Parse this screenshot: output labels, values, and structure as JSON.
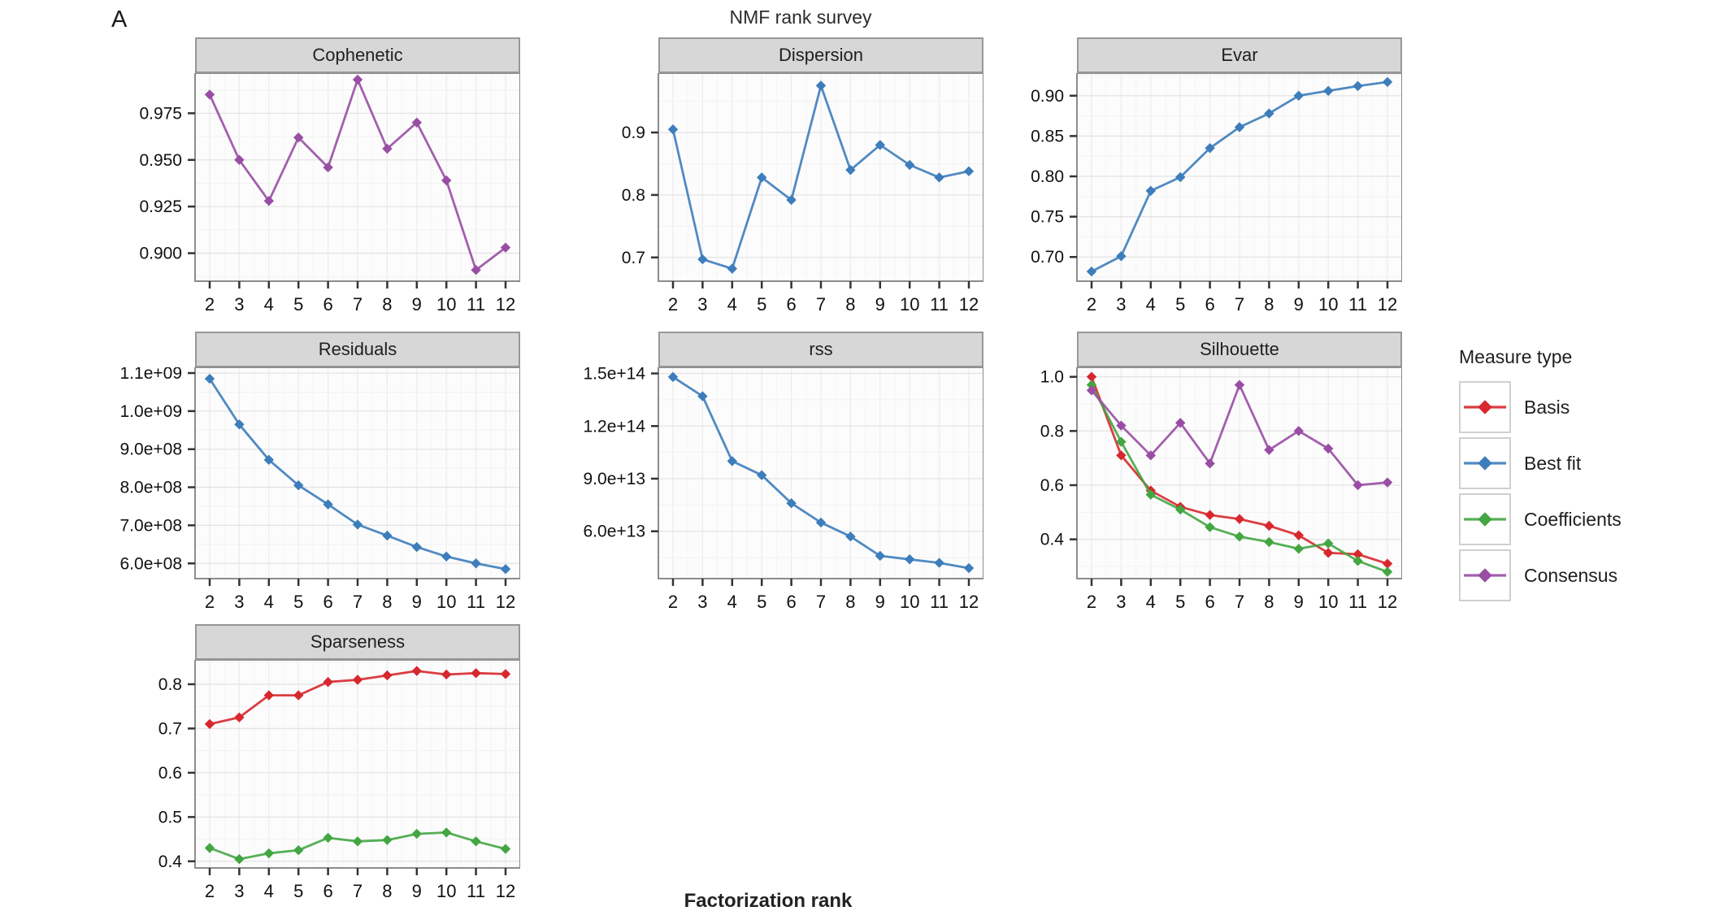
{
  "figure_label": "A",
  "title": "NMF rank survey",
  "xlabel": "Factorization rank",
  "x_tick_labels": [
    "2",
    "3",
    "4",
    "5",
    "6",
    "7",
    "8",
    "9",
    "10",
    "11",
    "12"
  ],
  "legend": {
    "title": "Measure type",
    "items": [
      {
        "label": "Basis",
        "color": "#d7282e"
      },
      {
        "label": "Best fit",
        "color": "#3d7dbb"
      },
      {
        "label": "Coefficients",
        "color": "#43a643"
      },
      {
        "label": "Consensus",
        "color": "#984fa3"
      }
    ]
  },
  "chart_data": [
    {
      "type": "line",
      "title": "Cophenetic",
      "x": [
        2,
        3,
        4,
        5,
        6,
        7,
        8,
        9,
        10,
        11,
        12
      ],
      "series": [
        {
          "name": "Consensus",
          "color": "#984fa3",
          "values": [
            0.985,
            0.95,
            0.928,
            0.962,
            0.946,
            0.993,
            0.956,
            0.97,
            0.939,
            0.891,
            0.903
          ]
        }
      ],
      "ylim": [
        0.885,
        0.9965
      ],
      "yticks": [
        {
          "v": 0.9,
          "label": "0.900"
        },
        {
          "v": 0.925,
          "label": "0.925"
        },
        {
          "v": 0.95,
          "label": "0.950"
        },
        {
          "v": 0.975,
          "label": "0.975"
        }
      ]
    },
    {
      "type": "line",
      "title": "Dispersion",
      "x": [
        2,
        3,
        4,
        5,
        6,
        7,
        8,
        9,
        10,
        11,
        12
      ],
      "series": [
        {
          "name": "Best fit",
          "color": "#3d7dbb",
          "values": [
            0.905,
            0.697,
            0.682,
            0.828,
            0.792,
            0.975,
            0.84,
            0.88,
            0.848,
            0.828,
            0.838
          ]
        }
      ],
      "ylim": [
        0.662,
        0.995
      ],
      "yticks": [
        {
          "v": 0.7,
          "label": "0.7"
        },
        {
          "v": 0.8,
          "label": "0.8"
        },
        {
          "v": 0.9,
          "label": "0.9"
        }
      ]
    },
    {
      "type": "line",
      "title": "Evar",
      "x": [
        2,
        3,
        4,
        5,
        6,
        7,
        8,
        9,
        10,
        11,
        12
      ],
      "series": [
        {
          "name": "Best fit",
          "color": "#3d7dbb",
          "values": [
            0.682,
            0.701,
            0.782,
            0.799,
            0.835,
            0.861,
            0.878,
            0.9,
            0.906,
            0.912,
            0.917
          ]
        }
      ],
      "ylim": [
        0.67,
        0.928
      ],
      "yticks": [
        {
          "v": 0.7,
          "label": "0.70"
        },
        {
          "v": 0.75,
          "label": "0.75"
        },
        {
          "v": 0.8,
          "label": "0.80"
        },
        {
          "v": 0.85,
          "label": "0.85"
        },
        {
          "v": 0.9,
          "label": "0.90"
        }
      ]
    },
    {
      "type": "line",
      "title": "Residuals",
      "x": [
        2,
        3,
        4,
        5,
        6,
        7,
        8,
        9,
        10,
        11,
        12
      ],
      "series": [
        {
          "name": "Best fit",
          "color": "#3d7dbb",
          "values": [
            1085000000.0,
            965000000.0,
            872000000.0,
            805000000.0,
            755000000.0,
            702000000.0,
            673000000.0,
            643000000.0,
            618000000.0,
            600000000.0,
            585000000.0
          ]
        }
      ],
      "ylim": [
        560000000.0,
        1115000000.0
      ],
      "yticks": [
        {
          "v": 600000000.0,
          "label": "6.0e+08"
        },
        {
          "v": 700000000.0,
          "label": "7.0e+08"
        },
        {
          "v": 800000000.0,
          "label": "8.0e+08"
        },
        {
          "v": 900000000.0,
          "label": "9.0e+08"
        },
        {
          "v": 1000000000.0,
          "label": "1.0e+09"
        },
        {
          "v": 1100000000.0,
          "label": "1.1e+09"
        }
      ]
    },
    {
      "type": "line",
      "title": "rss",
      "x": [
        2,
        3,
        4,
        5,
        6,
        7,
        8,
        9,
        10,
        11,
        12
      ],
      "series": [
        {
          "name": "Best fit",
          "color": "#3d7dbb",
          "values": [
            148000000000000.0,
            137000000000000.0,
            100000000000000.0,
            92000000000000.0,
            76000000000000.0,
            65000000000000.0,
            57000000000000.0,
            46000000000000.0,
            44000000000000.0,
            42000000000000.0,
            39000000000000.0
          ]
        }
      ],
      "ylim": [
        33000000000000.0,
        153500000000000.0
      ],
      "yticks": [
        {
          "v": 60000000000000.0,
          "label": "6.0e+13"
        },
        {
          "v": 90000000000000.0,
          "label": "9.0e+13"
        },
        {
          "v": 120000000000000.0,
          "label": "1.2e+14"
        },
        {
          "v": 150000000000000.0,
          "label": "1.5e+14"
        }
      ]
    },
    {
      "type": "line",
      "title": "Silhouette",
      "x": [
        2,
        3,
        4,
        5,
        6,
        7,
        8,
        9,
        10,
        11,
        12
      ],
      "series": [
        {
          "name": "Basis",
          "color": "#d7282e",
          "values": [
            1.0,
            0.71,
            0.58,
            0.52,
            0.49,
            0.475,
            0.45,
            0.415,
            0.35,
            0.345,
            0.31
          ]
        },
        {
          "name": "Coefficients",
          "color": "#43a643",
          "values": [
            0.97,
            0.76,
            0.565,
            0.51,
            0.445,
            0.41,
            0.39,
            0.365,
            0.385,
            0.32,
            0.28
          ]
        },
        {
          "name": "Consensus",
          "color": "#984fa3",
          "values": [
            0.95,
            0.82,
            0.71,
            0.83,
            0.68,
            0.97,
            0.73,
            0.8,
            0.735,
            0.6,
            0.61
          ]
        }
      ],
      "ylim": [
        0.255,
        1.035
      ],
      "yticks": [
        {
          "v": 0.4,
          "label": "0.4"
        },
        {
          "v": 0.6,
          "label": "0.6"
        },
        {
          "v": 0.8,
          "label": "0.8"
        },
        {
          "v": 1.0,
          "label": "1.0"
        }
      ]
    },
    {
      "type": "line",
      "title": "Sparseness",
      "x": [
        2,
        3,
        4,
        5,
        6,
        7,
        8,
        9,
        10,
        11,
        12
      ],
      "series": [
        {
          "name": "Basis",
          "color": "#d7282e",
          "values": [
            0.71,
            0.725,
            0.775,
            0.775,
            0.805,
            0.81,
            0.82,
            0.83,
            0.822,
            0.825,
            0.823
          ]
        },
        {
          "name": "Coefficients",
          "color": "#43a643",
          "values": [
            0.43,
            0.405,
            0.418,
            0.425,
            0.453,
            0.445,
            0.448,
            0.462,
            0.465,
            0.445,
            0.428
          ]
        }
      ],
      "ylim": [
        0.385,
        0.855
      ],
      "yticks": [
        {
          "v": 0.4,
          "label": "0.4"
        },
        {
          "v": 0.5,
          "label": "0.5"
        },
        {
          "v": 0.6,
          "label": "0.6"
        },
        {
          "v": 0.7,
          "label": "0.7"
        },
        {
          "v": 0.8,
          "label": "0.8"
        }
      ]
    }
  ]
}
